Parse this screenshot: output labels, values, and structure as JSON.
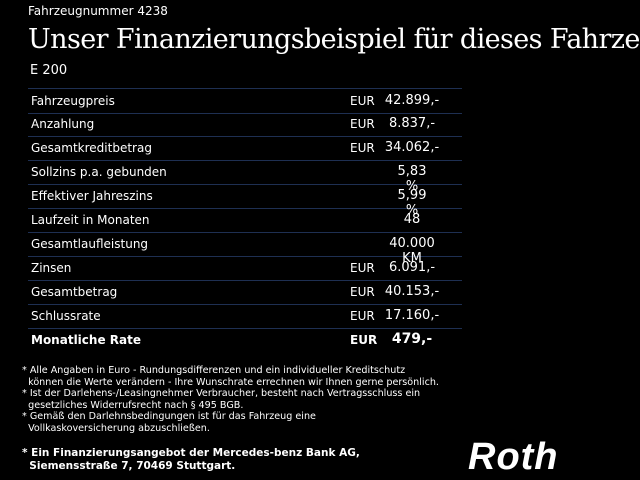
{
  "header": {
    "vehicle_number": "Fahrzeugnummer 4238",
    "title": "Unser Finanzierungsbeispiel für dieses Fahrzeug.*",
    "model": "E 200"
  },
  "table": {
    "rows": [
      {
        "label": "Fahrzeugpreis",
        "currency": "EUR",
        "value": "42.899,-"
      },
      {
        "label": "Anzahlung",
        "currency": "EUR",
        "value": "8.837,-"
      },
      {
        "label": "Gesamtkreditbetrag",
        "currency": "EUR",
        "value": "34.062,-"
      },
      {
        "label": "Sollzins p.a. gebunden",
        "value": "5,83 %"
      },
      {
        "label": "Effektiver Jahreszins",
        "value": "5,99 %"
      },
      {
        "label": "Laufzeit in Monaten",
        "value": "48"
      },
      {
        "label": "Gesamtlaufleistung",
        "value": "40.000 KM"
      },
      {
        "label": "Zinsen",
        "currency": "EUR",
        "value": "6.091,-"
      },
      {
        "label": "Gesamtbetrag",
        "currency": "EUR",
        "value": "40.153,-"
      },
      {
        "label": "Schlussrate",
        "currency": "EUR",
        "value": "17.160,-"
      },
      {
        "label": "Monatliche Rate",
        "currency": "EUR",
        "value": "479,-"
      }
    ]
  },
  "footnotes": [
    "* Alle Angaben in Euro - Rundungsdifferenzen und ein individueller Kreditschutz",
    "  können die Werte verändern - Ihre Wunschrate errechnen wir Ihnen gerne persönlich.",
    "* Ist der Darlehens-/Leasingnehmer Verbraucher, besteht nach Vertragsschluss ein",
    "  gesetzliches Widerrufsrecht nach § 495 BGB.",
    "* Gemäß den Darlehnsbedingungen ist für das Fahrzeug eine",
    "  Vollkaskoversicherung abzuschließen."
  ],
  "offer": [
    "* Ein Finanzierungsangebot der Mercedes-benz Bank AG,",
    "  Siemensstraße 7, 70469 Stuttgart."
  ],
  "logo": "Roth"
}
